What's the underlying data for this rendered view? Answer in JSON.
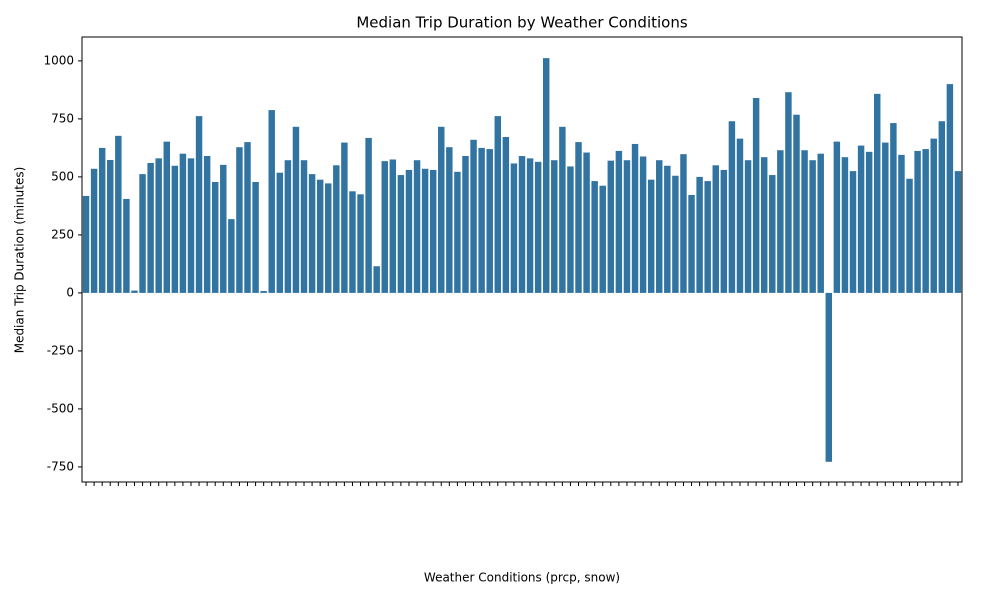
{
  "chart_data": {
    "type": "bar",
    "title": "Median Trip Duration by Weather Conditions",
    "xlabel": "Weather Conditions (prcp, snow)",
    "ylabel": "Median Trip Duration (minutes)",
    "color": "#3274a1",
    "categories": [
      null,
      null,
      null,
      null,
      null,
      null,
      null,
      null,
      null,
      null,
      null,
      null,
      null,
      null,
      null,
      null,
      null,
      null,
      null,
      null,
      null,
      null,
      null,
      null,
      null,
      null,
      null,
      null,
      null,
      null,
      null,
      null,
      null,
      null,
      null,
      null,
      null,
      null,
      null,
      null,
      null,
      null,
      null,
      null,
      null,
      null,
      null,
      null,
      null,
      null,
      null,
      null,
      null,
      null,
      null,
      null,
      null,
      null,
      null,
      null,
      null,
      null,
      null,
      null,
      null,
      null,
      null,
      null,
      null,
      null,
      null,
      null,
      null,
      null,
      null,
      null,
      null,
      null,
      null,
      null,
      null,
      null,
      null,
      null,
      null,
      null,
      null,
      null,
      null,
      null,
      null,
      null,
      null,
      null,
      null,
      null,
      null,
      null,
      null,
      null,
      null,
      null,
      null,
      null,
      null,
      null,
      null,
      null,
      null
    ],
    "values": [
      418,
      535,
      625,
      573,
      677,
      405,
      10,
      512,
      560,
      580,
      652,
      548,
      600,
      580,
      762,
      590,
      478,
      552,
      318,
      628,
      650,
      478,
      8,
      788,
      518,
      572,
      716,
      572,
      512,
      488,
      472,
      550,
      648,
      438,
      425,
      668,
      115,
      568,
      575,
      508,
      530,
      572,
      535,
      530,
      716,
      628,
      522,
      590,
      660,
      625,
      620,
      762,
      672,
      558,
      590,
      580,
      565,
      1012,
      572,
      716,
      545,
      650,
      605,
      482,
      462,
      570,
      612,
      572,
      642,
      588,
      488,
      572,
      548,
      505,
      598,
      422,
      500,
      482,
      550,
      530,
      740,
      665,
      572,
      840,
      585,
      508,
      615,
      865,
      768,
      615,
      572,
      600,
      -728,
      652,
      585,
      525,
      635,
      608,
      858,
      648,
      732,
      595,
      492,
      612,
      620,
      665,
      740,
      900,
      525
    ],
    "ylim": [
      -815,
      1103
    ],
    "yticks": [
      -750,
      -500,
      -250,
      0,
      250,
      500,
      750,
      1000
    ],
    "grid": false
  }
}
